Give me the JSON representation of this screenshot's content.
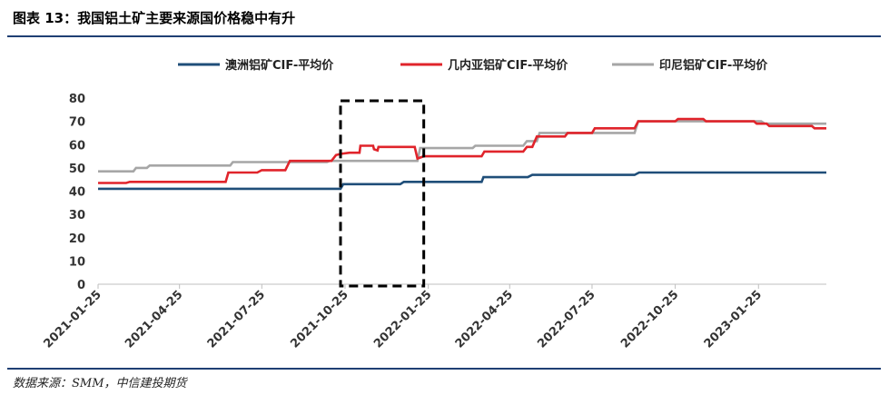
{
  "title": "图表 13：我国铝土矿主要来源国价格稳中有升",
  "source": "数据来源：SMM，中信建投期货",
  "colors": {
    "australia": "#1f4e79",
    "guinea": "#e0242b",
    "indonesia": "#a6a6a6",
    "rule": "#1f3f73",
    "axis": "#bfbfbf"
  },
  "chart_data": {
    "type": "line",
    "title": "",
    "xlabel": "",
    "ylabel": "",
    "ylim": [
      0,
      80
    ],
    "yticks": [
      "0",
      "10",
      "20",
      "30",
      "40",
      "50",
      "60",
      "70",
      "80"
    ],
    "xticks": [
      "2021-01-25",
      "2021-04-25",
      "2021-07-25",
      "2021-10-25",
      "2022-01-25",
      "2022-04-25",
      "2022-07-25",
      "2022-10-25",
      "2023-01-25"
    ],
    "xrange": [
      "2021-01-25",
      "2023-04-10"
    ],
    "grid": false,
    "legend_position": "top",
    "annotation": "dashed box from 2021-10-20 to 2022-01-20",
    "series": [
      {
        "key": "australia",
        "name": "澳洲铝矿CIF-平均价",
        "step": true,
        "points": [
          [
            "2021-01-25",
            41
          ],
          [
            "2021-10-20",
            41
          ],
          [
            "2021-10-23",
            43
          ],
          [
            "2021-12-25",
            43
          ],
          [
            "2021-12-29",
            44
          ],
          [
            "2022-03-25",
            44
          ],
          [
            "2022-03-27",
            46
          ],
          [
            "2022-05-15",
            46
          ],
          [
            "2022-05-20",
            47
          ],
          [
            "2022-09-10",
            47
          ],
          [
            "2022-09-15",
            48
          ],
          [
            "2023-04-10",
            48
          ]
        ]
      },
      {
        "key": "guinea",
        "name": "几内亚铝矿CIF-平均价",
        "step": true,
        "points": [
          [
            "2021-01-25",
            43.5
          ],
          [
            "2021-02-25",
            43.5
          ],
          [
            "2021-03-01",
            44
          ],
          [
            "2021-06-15",
            44
          ],
          [
            "2021-06-18",
            48
          ],
          [
            "2021-07-20",
            48
          ],
          [
            "2021-07-25",
            49
          ],
          [
            "2021-08-20",
            49
          ],
          [
            "2021-08-25",
            53
          ],
          [
            "2021-10-10",
            53
          ],
          [
            "2021-10-15",
            55.5
          ],
          [
            "2021-10-20",
            56
          ],
          [
            "2021-10-30",
            56.5
          ],
          [
            "2021-11-10",
            56.5
          ],
          [
            "2021-11-11",
            59.5
          ],
          [
            "2021-11-25",
            59.5
          ],
          [
            "2021-11-26",
            58
          ],
          [
            "2021-11-30",
            57.5
          ],
          [
            "2021-12-01",
            59
          ],
          [
            "2022-01-10",
            59
          ],
          [
            "2022-01-13",
            54
          ],
          [
            "2022-01-20",
            55
          ],
          [
            "2022-03-25",
            55
          ],
          [
            "2022-03-28",
            57
          ],
          [
            "2022-05-10",
            57
          ],
          [
            "2022-05-14",
            59
          ],
          [
            "2022-05-20",
            59
          ],
          [
            "2022-05-25",
            63.5
          ],
          [
            "2022-06-25",
            63.5
          ],
          [
            "2022-06-28",
            65
          ],
          [
            "2022-07-25",
            65
          ],
          [
            "2022-07-28",
            67
          ],
          [
            "2022-09-10",
            67
          ],
          [
            "2022-09-14",
            70
          ],
          [
            "2022-10-25",
            70
          ],
          [
            "2022-10-28",
            71
          ],
          [
            "2022-11-25",
            71
          ],
          [
            "2022-11-28",
            70
          ],
          [
            "2023-01-20",
            70
          ],
          [
            "2023-01-23",
            69
          ],
          [
            "2023-02-03",
            69
          ],
          [
            "2023-02-06",
            68
          ],
          [
            "2023-03-25",
            68
          ],
          [
            "2023-03-28",
            67
          ],
          [
            "2023-04-10",
            67
          ]
        ]
      },
      {
        "key": "indonesia",
        "name": "印尼铝矿CIF-平均价",
        "step": true,
        "points": [
          [
            "2021-01-25",
            48.5
          ],
          [
            "2021-03-05",
            48.5
          ],
          [
            "2021-03-08",
            50
          ],
          [
            "2021-03-20",
            50
          ],
          [
            "2021-03-23",
            51
          ],
          [
            "2021-06-20",
            51
          ],
          [
            "2021-06-23",
            52.5
          ],
          [
            "2021-10-05",
            52.5
          ],
          [
            "2021-10-08",
            53
          ],
          [
            "2022-01-13",
            53
          ],
          [
            "2022-01-16",
            58.5
          ],
          [
            "2022-03-15",
            58.5
          ],
          [
            "2022-03-18",
            59.5
          ],
          [
            "2022-05-10",
            59.5
          ],
          [
            "2022-05-14",
            61.5
          ],
          [
            "2022-05-25",
            61.5
          ],
          [
            "2022-05-28",
            65
          ],
          [
            "2022-09-10",
            65
          ],
          [
            "2022-09-14",
            70
          ],
          [
            "2023-01-28",
            70
          ],
          [
            "2023-02-01",
            69
          ],
          [
            "2023-04-10",
            69
          ]
        ]
      }
    ]
  }
}
